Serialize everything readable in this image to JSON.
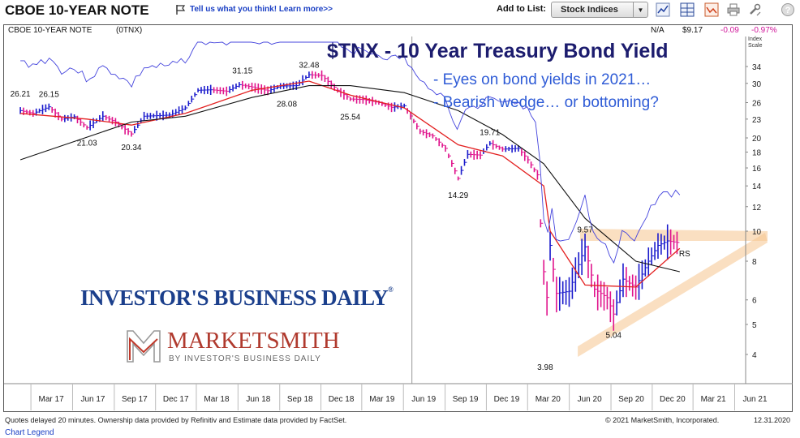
{
  "header": {
    "title": "CBOE 10-YEAR NOTE",
    "feedback_link": "Tell us what you think! Learn more>>",
    "add_to_list_label": "Add to List:",
    "list_selected": "Stock Indices",
    "tools": [
      "line-chart-icon",
      "grid-icon",
      "alert-icon",
      "print-icon",
      "wrench-icon",
      "help-icon"
    ]
  },
  "info": {
    "name": "CBOE 10-YEAR NOTE",
    "symbol": "(0TNX)",
    "na": "N/A",
    "price": "$9.17",
    "change": "-0.09",
    "change_pct": "-0.97%"
  },
  "overlay": {
    "title": "$TNX - 10 Year Treasury Bond Yield",
    "line1": "- Eyes on bond yields in 2021…",
    "line2": "- Bearish wedge… or bottoming?"
  },
  "logos": {
    "ibd": "INVESTOR'S BUSINESS DAILY",
    "marketsmith": "MARKETSMITH",
    "marketsmith_sub": "BY INVESTOR'S BUSINESS DAILY"
  },
  "footer": {
    "disclaimer": "Quotes delayed 20 minutes. Ownership data provided by Refinitiv and Estimate data provided by FactSet.",
    "copyright": "© 2021 MarketSmith, Incorporated.",
    "date": "12.31.2020",
    "legend_link": "Chart Legend"
  },
  "colors": {
    "price_up": "#1a1acc",
    "price_down": "#e0138c",
    "ma_fast": "#e32020",
    "ma_slow": "#111111",
    "rs_line": "#4444dd",
    "wedge": "#f6c48e",
    "title": "#1c1c6e",
    "subtitle": "#2e5bd6"
  },
  "chart_data": {
    "type": "line",
    "title": "$TNX - 10 Year Treasury Bond Yield",
    "scale": "log",
    "y_axis_title": "Index Scale",
    "y_ticks": [
      34,
      30,
      26,
      23,
      20,
      18,
      16,
      14,
      12,
      10,
      8,
      6,
      5,
      4
    ],
    "x_ticks": [
      "Mar 17",
      "Jun 17",
      "Sep 17",
      "Dec 17",
      "Mar 18",
      "Jun 18",
      "Sep 18",
      "Dec 18",
      "Mar 19",
      "Jun 19",
      "Sep 19",
      "Dec 19",
      "Mar 20",
      "Jun 20",
      "Sep 20",
      "Dec 20",
      "Mar 21",
      "Jun 21"
    ],
    "x_range": [
      "2017-01",
      "2021-07"
    ],
    "grid": false,
    "series": [
      {
        "name": "",
        "x": [
          "2017-01-06",
          "2017-02-03",
          "2017-03-10",
          "2017-04-07",
          "2017-05-05",
          "2017-06-02",
          "2017-07-07",
          "2017-08-04",
          "2017-09-08",
          "2017-10-06",
          "2017-11-03",
          "2017-12-01",
          "2018-01-05",
          "2018-02-02",
          "2018-03-02",
          "2018-04-06",
          "2018-05-04",
          "2018-06-01",
          "2018-07-06",
          "2018-08-03",
          "2018-09-07",
          "2018-10-05",
          "2018-11-02",
          "2018-12-07",
          "2019-01-04",
          "2019-02-01",
          "2019-03-08",
          "2019-04-05",
          "2019-05-03",
          "2019-06-07",
          "2019-07-05",
          "2019-08-02",
          "2019-08-30",
          "2019-09-20",
          "2019-10-18",
          "2019-11-08",
          "2019-12-06",
          "2020-01-10",
          "2020-01-31",
          "2020-02-21",
          "2020-03-06",
          "2020-03-09",
          "2020-03-20",
          "2020-04-03",
          "2020-05-01",
          "2020-06-05",
          "2020-06-26",
          "2020-07-24",
          "2020-08-07",
          "2020-08-28",
          "2020-09-25",
          "2020-10-23",
          "2020-11-13",
          "2020-12-04",
          "2020-12-31"
        ],
        "y": [
          24.5,
          24.0,
          25.2,
          23.0,
          23.4,
          21.6,
          23.5,
          22.5,
          20.6,
          23.5,
          23.6,
          23.7,
          25.0,
          28.5,
          28.6,
          28.3,
          29.7,
          29.2,
          28.4,
          29.4,
          29.5,
          32.0,
          31.8,
          28.5,
          26.7,
          26.6,
          26.0,
          25.1,
          25.4,
          21.0,
          20.3,
          18.5,
          14.8,
          17.7,
          17.6,
          19.2,
          18.4,
          18.5,
          17.0,
          15.2,
          7.4,
          4.9,
          9.0,
          6.3,
          6.4,
          8.9,
          6.5,
          6.1,
          5.4,
          7.0,
          6.6,
          8.0,
          9.0,
          9.3,
          9.17
        ]
      },
      {
        "name": "",
        "x": [
          "2017-01-06",
          "2017-06-02",
          "2017-09-08",
          "2018-01-05",
          "2018-06-01",
          "2018-10-05",
          "2019-01-04",
          "2019-05-03",
          "2019-08-30",
          "2019-12-06",
          "2020-03-06",
          "2020-03-20",
          "2020-06-05",
          "2020-09-25",
          "2020-12-31"
        ],
        "y": [
          24.0,
          23.0,
          22.0,
          24.0,
          28.5,
          30.5,
          27.5,
          25.0,
          19.0,
          17.5,
          14.0,
          10.0,
          6.7,
          6.6,
          8.8
        ]
      },
      {
        "name": "",
        "x": [
          "2017-01-06",
          "2017-09-08",
          "2018-01-05",
          "2018-06-01",
          "2018-10-05",
          "2019-01-04",
          "2019-05-03",
          "2019-08-30",
          "2019-12-06",
          "2020-03-06",
          "2020-06-05",
          "2020-09-25",
          "2020-12-31"
        ],
        "y": [
          17.0,
          22.5,
          23.5,
          27.0,
          29.5,
          29.5,
          28.0,
          24.5,
          20.5,
          16.5,
          11.0,
          8.0,
          7.4
        ]
      }
    ],
    "annotations": [
      {
        "label": "26.21",
        "x": "2017-01-06",
        "y": 26.21
      },
      {
        "label": "26.15",
        "x": "2017-03-10",
        "y": 26.15
      },
      {
        "label": "21.03",
        "x": "2017-06-02",
        "y": 21.03
      },
      {
        "label": "20.34",
        "x": "2017-09-08",
        "y": 20.34
      },
      {
        "label": "31.15",
        "x": "2018-05-11",
        "y": 31.15
      },
      {
        "label": "28.08",
        "x": "2018-08-17",
        "y": 28.08
      },
      {
        "label": "32.48",
        "x": "2018-10-05",
        "y": 32.48
      },
      {
        "label": "25.54",
        "x": "2019-01-04",
        "y": 25.54
      },
      {
        "label": "14.29",
        "x": "2019-08-30",
        "y": 14.29
      },
      {
        "label": "19.71",
        "x": "2019-11-08",
        "y": 19.71
      },
      {
        "label": "3.98",
        "x": "2020-03-09",
        "y": 3.98
      },
      {
        "label": "9.57",
        "x": "2020-06-05",
        "y": 9.57
      },
      {
        "label": "5.04",
        "x": "2020-08-07",
        "y": 5.04
      },
      {
        "label": "RS",
        "x": "2020-12-31",
        "y": 8.0
      }
    ]
  }
}
